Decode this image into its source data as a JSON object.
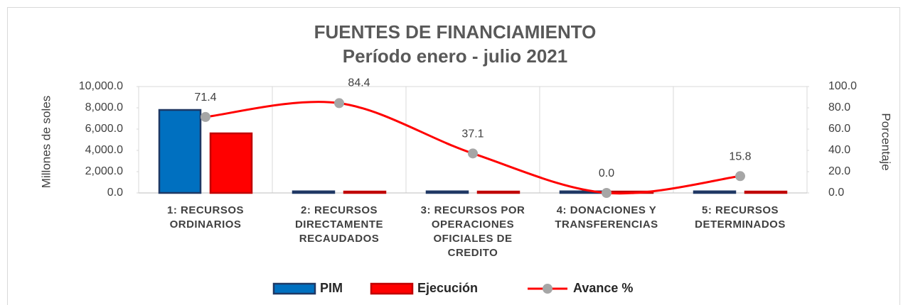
{
  "chart_data": {
    "type": "bar-line",
    "title": "FUENTES DE FINANCIAMIENTO",
    "subtitle": "Período enero - julio 2021",
    "y_label": "Millones de soles",
    "y2_label": "Porcentaje",
    "categories": [
      "1: RECURSOS ORDINARIOS",
      "2: RECURSOS DIRECTAMENTE RECAUDADOS",
      "3: RECURSOS POR OPERACIONES OFICIALES DE CREDITO",
      "4: DONACIONES Y TRANSFERENCIAS",
      "5: RECURSOS DETERMINADOS"
    ],
    "series": [
      {
        "name": "PIM",
        "type": "bar",
        "color": "#0070c0",
        "edge": "#1f3864",
        "values": [
          7800,
          150,
          150,
          150,
          150
        ]
      },
      {
        "name": "Ejecución",
        "type": "bar",
        "color": "#ff0000",
        "edge": "#c00000",
        "values": [
          5600,
          130,
          130,
          130,
          130
        ]
      },
      {
        "name": "Avance %",
        "type": "line",
        "axis": "y2",
        "color": "#ff0000",
        "marker_color": "#a6a6a6",
        "values": [
          71.4,
          84.4,
          37.1,
          0.0,
          15.8
        ],
        "value_labels": [
          "71.4",
          "84.4",
          "37.1",
          "0.0",
          "15.8"
        ]
      }
    ],
    "ylim": [
      0,
      10000
    ],
    "yticks": [
      {
        "value": 0,
        "label": "0.0"
      },
      {
        "value": 2000,
        "label": "2,000.0"
      },
      {
        "value": 4000,
        "label": "4,000.0"
      },
      {
        "value": 6000,
        "label": "6,000.0"
      },
      {
        "value": 8000,
        "label": "8,000.0"
      },
      {
        "value": 10000,
        "label": "10,000.0"
      }
    ],
    "y2lim": [
      0,
      100
    ],
    "y2ticks": [
      {
        "value": 0,
        "label": "0.0"
      },
      {
        "value": 20,
        "label": "20.0"
      },
      {
        "value": 40,
        "label": "40.0"
      },
      {
        "value": 60,
        "label": "60.0"
      },
      {
        "value": 80,
        "label": "80.0"
      },
      {
        "value": 100,
        "label": "100.0"
      }
    ],
    "legend": "bottom"
  }
}
